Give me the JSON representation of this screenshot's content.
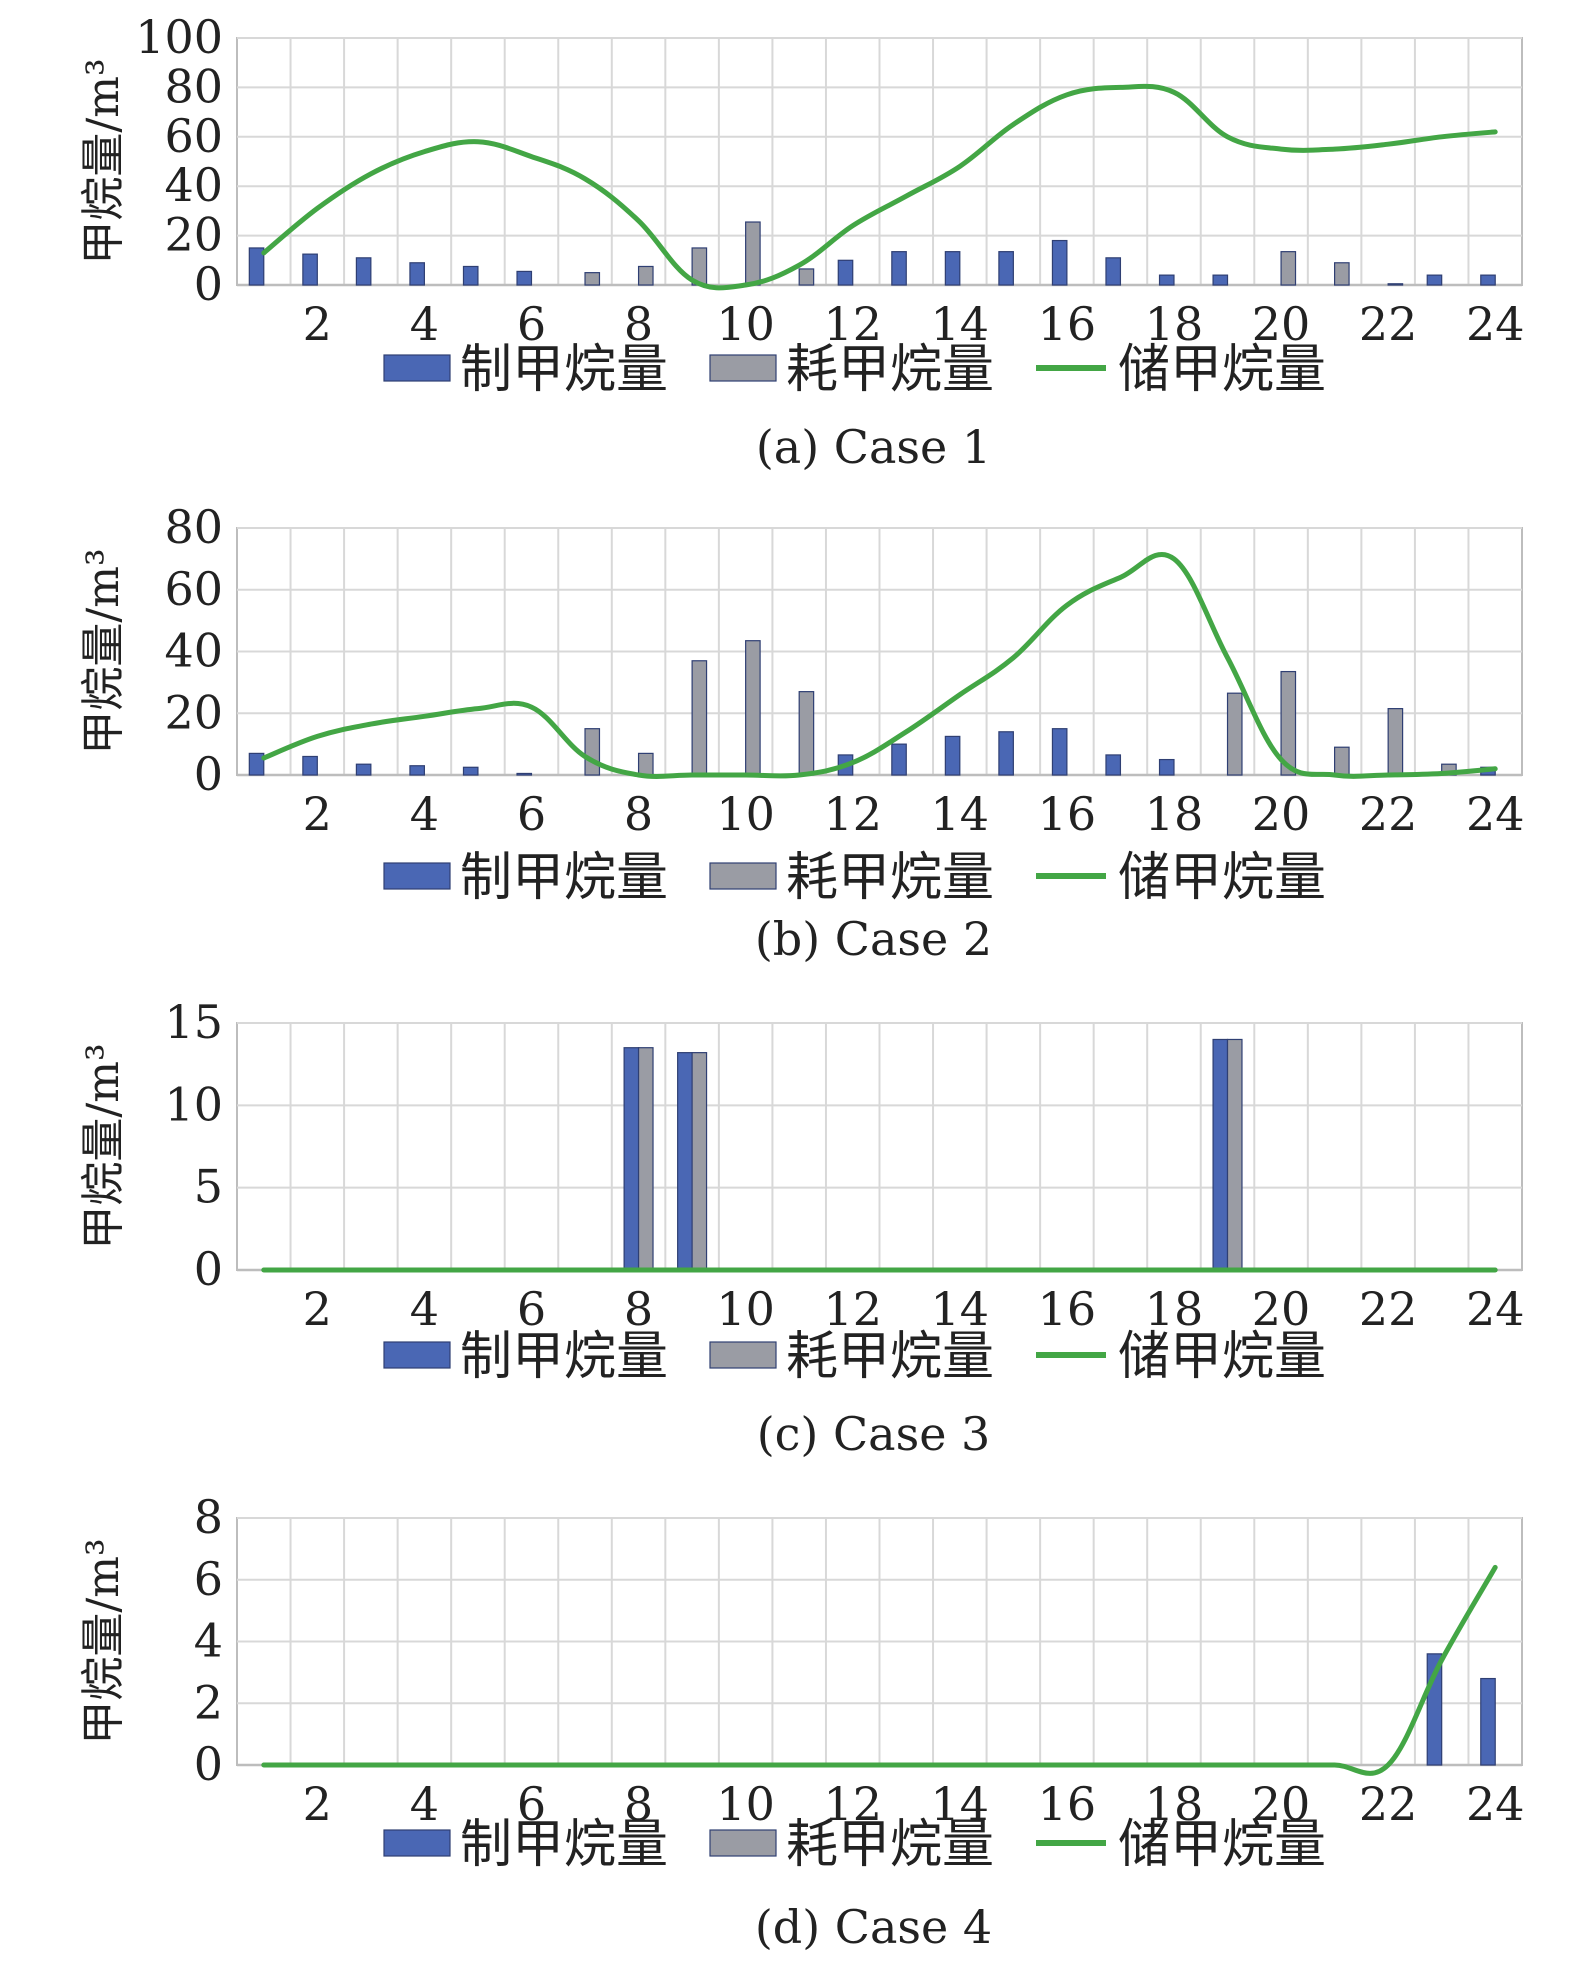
{
  "colors": {
    "production": "#4a67b4",
    "consumption": "#9a9ca4",
    "storage": "#43a645",
    "grid": "#d8d8d8",
    "axis": "#bdbdbd"
  },
  "chart_data": [
    {
      "type": "bar",
      "caption": "(a) Case 1",
      "ylabel": "甲烷量/m³",
      "ylim": [
        0,
        100
      ],
      "yticks": [
        0,
        20,
        40,
        60,
        80,
        100
      ],
      "x": [
        1,
        2,
        3,
        4,
        5,
        6,
        7,
        8,
        9,
        10,
        11,
        12,
        13,
        14,
        15,
        16,
        17,
        18,
        19,
        20,
        21,
        22,
        23,
        24
      ],
      "xticks": [
        2,
        4,
        6,
        8,
        10,
        12,
        14,
        16,
        18,
        20,
        22,
        24
      ],
      "grid": true,
      "legend_position": "bottom",
      "series": [
        {
          "name": "制甲烷量",
          "kind": "bar",
          "values": [
            15,
            12.5,
            11,
            9,
            7.5,
            5.5,
            0,
            0,
            0,
            0,
            0,
            10,
            13.5,
            13.5,
            13.5,
            18,
            11,
            4,
            4,
            0,
            0,
            0,
            4,
            4
          ]
        },
        {
          "name": "耗甲烷量",
          "kind": "bar",
          "values": [
            0,
            0,
            0,
            0,
            0,
            0,
            5,
            7.5,
            15,
            25.5,
            6.5,
            0,
            0,
            0,
            0,
            0,
            0,
            0,
            0,
            13.5,
            9,
            0.5,
            0,
            0
          ]
        },
        {
          "name": "储甲烷量",
          "kind": "line",
          "values": [
            13,
            31,
            45,
            54,
            58,
            52,
            43,
            26,
            2,
            0,
            8,
            24,
            36,
            48,
            65,
            77,
            80,
            78,
            60,
            55,
            55,
            57,
            60,
            62
          ]
        }
      ]
    },
    {
      "type": "bar",
      "caption": "(b) Case 2",
      "ylabel": "甲烷量/m³",
      "ylim": [
        0,
        80
      ],
      "yticks": [
        0,
        20,
        40,
        60,
        80
      ],
      "x": [
        1,
        2,
        3,
        4,
        5,
        6,
        7,
        8,
        9,
        10,
        11,
        12,
        13,
        14,
        15,
        16,
        17,
        18,
        19,
        20,
        21,
        22,
        23,
        24
      ],
      "xticks": [
        2,
        4,
        6,
        8,
        10,
        12,
        14,
        16,
        18,
        20,
        22,
        24
      ],
      "grid": true,
      "legend_position": "bottom",
      "series": [
        {
          "name": "制甲烷量",
          "kind": "bar",
          "values": [
            7,
            6,
            3.5,
            3,
            2.5,
            0.5,
            0,
            0,
            0,
            0,
            0,
            6.5,
            10,
            12.5,
            14,
            15,
            6.5,
            5,
            0,
            0,
            0,
            0,
            0,
            2.5
          ]
        },
        {
          "name": "耗甲烷量",
          "kind": "bar",
          "values": [
            0,
            0,
            0,
            0,
            0,
            0,
            15,
            7,
            37,
            43.5,
            27,
            0,
            0,
            0,
            0,
            0,
            0,
            0,
            26.5,
            33.5,
            9,
            21.5,
            3.5,
            0
          ]
        },
        {
          "name": "储甲烷量",
          "kind": "line",
          "values": [
            5.5,
            12.5,
            16.5,
            19,
            21.5,
            22,
            6,
            0,
            0,
            0,
            0,
            4,
            14,
            26,
            38,
            55,
            64,
            70,
            38,
            5,
            0,
            0,
            0.5,
            2
          ]
        }
      ]
    },
    {
      "type": "bar",
      "caption": "(c) Case 3",
      "ylabel": "甲烷量/m³",
      "ylim": [
        0,
        15
      ],
      "yticks": [
        0,
        5,
        10,
        15
      ],
      "x": [
        1,
        2,
        3,
        4,
        5,
        6,
        7,
        8,
        9,
        10,
        11,
        12,
        13,
        14,
        15,
        16,
        17,
        18,
        19,
        20,
        21,
        22,
        23,
        24
      ],
      "xticks": [
        2,
        4,
        6,
        8,
        10,
        12,
        14,
        16,
        18,
        20,
        22,
        24
      ],
      "grid": true,
      "legend_position": "bottom",
      "series": [
        {
          "name": "制甲烷量",
          "kind": "bar",
          "values": [
            0,
            0,
            0,
            0,
            0,
            0,
            0,
            13.5,
            13.2,
            0,
            0,
            0,
            0,
            0,
            0,
            0,
            0,
            0,
            14,
            0,
            0,
            0,
            0,
            0
          ]
        },
        {
          "name": "耗甲烷量",
          "kind": "bar",
          "values": [
            0,
            0,
            0,
            0,
            0,
            0,
            0,
            13.5,
            13.2,
            0,
            0,
            0,
            0,
            0,
            0,
            0,
            0,
            0,
            14,
            0,
            0,
            0,
            0,
            0
          ]
        },
        {
          "name": "储甲烷量",
          "kind": "line",
          "values": [
            0,
            0,
            0,
            0,
            0,
            0,
            0,
            0,
            0,
            0,
            0,
            0,
            0,
            0,
            0,
            0,
            0,
            0,
            0,
            0,
            0,
            0,
            0,
            0
          ]
        }
      ]
    },
    {
      "type": "bar",
      "caption": "(d) Case 4",
      "ylabel": "甲烷量/m³",
      "ylim": [
        0,
        8
      ],
      "yticks": [
        0,
        2,
        4,
        6,
        8
      ],
      "x": [
        1,
        2,
        3,
        4,
        5,
        6,
        7,
        8,
        9,
        10,
        11,
        12,
        13,
        14,
        15,
        16,
        17,
        18,
        19,
        20,
        21,
        22,
        23,
        24
      ],
      "xticks": [
        2,
        4,
        6,
        8,
        10,
        12,
        14,
        16,
        18,
        20,
        22,
        24
      ],
      "grid": true,
      "legend_position": "bottom",
      "series": [
        {
          "name": "制甲烷量",
          "kind": "bar",
          "values": [
            0,
            0,
            0,
            0,
            0,
            0,
            0,
            0,
            0,
            0,
            0,
            0,
            0,
            0,
            0,
            0,
            0,
            0,
            0,
            0,
            0,
            0,
            3.6,
            2.8
          ]
        },
        {
          "name": "耗甲烷量",
          "kind": "bar",
          "values": [
            0,
            0,
            0,
            0,
            0,
            0,
            0,
            0,
            0,
            0,
            0,
            0,
            0,
            0,
            0,
            0,
            0,
            0,
            0,
            0,
            0,
            0,
            0,
            0
          ]
        },
        {
          "name": "储甲烷量",
          "kind": "line",
          "values": [
            0,
            0,
            0,
            0,
            0,
            0,
            0,
            0,
            0,
            0,
            0,
            0,
            0,
            0,
            0,
            0,
            0,
            0,
            0,
            0,
            0,
            0,
            3.4,
            6.4
          ]
        }
      ]
    }
  ]
}
